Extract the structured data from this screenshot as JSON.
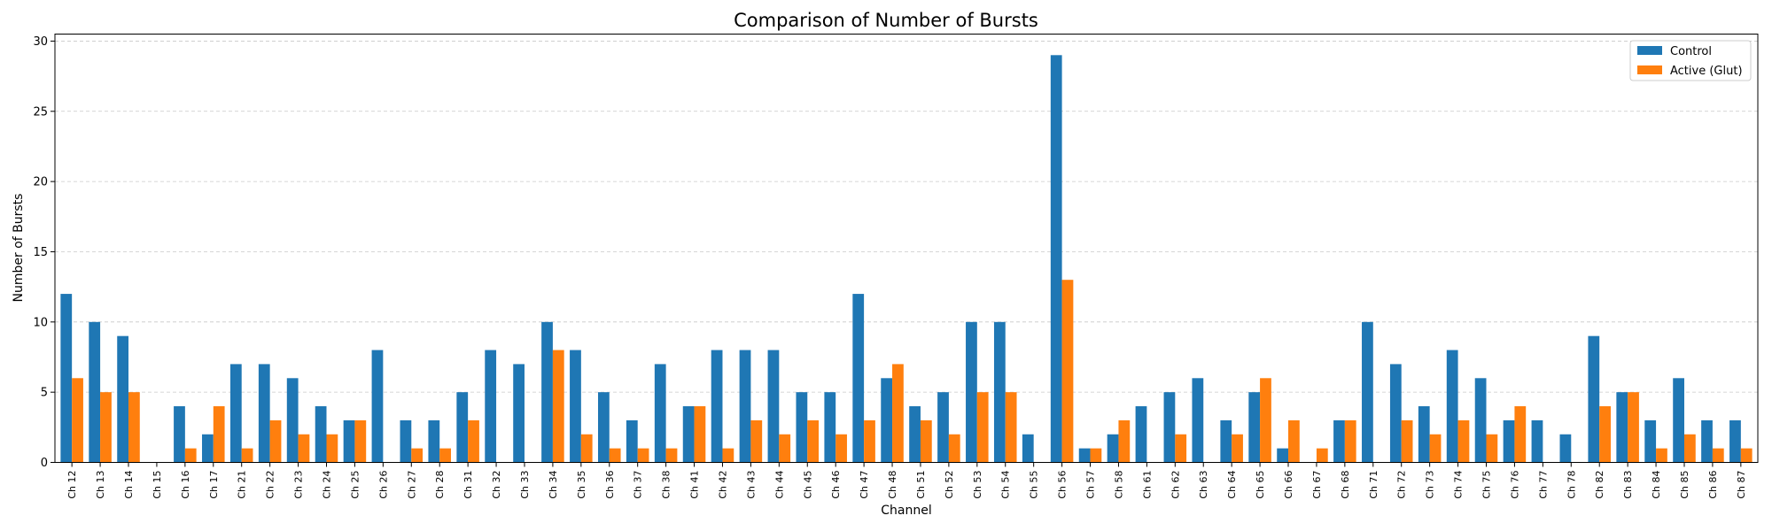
{
  "chart_data": {
    "type": "bar",
    "title": "Comparison of Number of Bursts",
    "xlabel": "Channel",
    "ylabel": "Number of Bursts",
    "ylim": [
      0,
      30.5
    ],
    "yticks": [
      0,
      5,
      10,
      15,
      20,
      25,
      30
    ],
    "grid": "y-dashed",
    "legend_position": "top-right",
    "categories": [
      "Ch 12",
      "Ch 13",
      "Ch 14",
      "Ch 15",
      "Ch 16",
      "Ch 17",
      "Ch 21",
      "Ch 22",
      "Ch 23",
      "Ch 24",
      "Ch 25",
      "Ch 26",
      "Ch 27",
      "Ch 28",
      "Ch 31",
      "Ch 32",
      "Ch 33",
      "Ch 34",
      "Ch 35",
      "Ch 36",
      "Ch 37",
      "Ch 38",
      "Ch 41",
      "Ch 42",
      "Ch 43",
      "Ch 44",
      "Ch 45",
      "Ch 46",
      "Ch 47",
      "Ch 48",
      "Ch 51",
      "Ch 52",
      "Ch 53",
      "Ch 54",
      "Ch 55",
      "Ch 56",
      "Ch 57",
      "Ch 58",
      "Ch 61",
      "Ch 62",
      "Ch 63",
      "Ch 64",
      "Ch 65",
      "Ch 66",
      "Ch 67",
      "Ch 68",
      "Ch 71",
      "Ch 72",
      "Ch 73",
      "Ch 74",
      "Ch 75",
      "Ch 76",
      "Ch 77",
      "Ch 78",
      "Ch 82",
      "Ch 83",
      "Ch 84",
      "Ch 85",
      "Ch 86",
      "Ch 87"
    ],
    "series": [
      {
        "name": "Control",
        "color": "#1f77b4",
        "values": [
          12,
          10,
          9,
          0,
          4,
          2,
          7,
          7,
          6,
          4,
          3,
          8,
          3,
          3,
          5,
          8,
          7,
          10,
          8,
          5,
          3,
          7,
          4,
          8,
          8,
          8,
          5,
          5,
          12,
          6,
          4,
          5,
          10,
          10,
          2,
          29,
          1,
          2,
          4,
          5,
          6,
          3,
          5,
          1,
          0,
          3,
          10,
          7,
          4,
          8,
          6,
          3,
          3,
          2,
          9,
          5,
          3,
          6,
          3,
          3
        ]
      },
      {
        "name": "Active (Glut)",
        "color": "#ff7f0e",
        "values": [
          6,
          5,
          5,
          0,
          1,
          4,
          1,
          3,
          2,
          2,
          3,
          0,
          1,
          1,
          3,
          0,
          0,
          8,
          2,
          1,
          1,
          1,
          4,
          1,
          3,
          2,
          3,
          2,
          3,
          7,
          3,
          2,
          5,
          5,
          0,
          13,
          1,
          3,
          0,
          2,
          0,
          2,
          6,
          3,
          1,
          3,
          0,
          3,
          2,
          3,
          2,
          4,
          0,
          0,
          4,
          5,
          1,
          2,
          1,
          1
        ]
      }
    ]
  }
}
